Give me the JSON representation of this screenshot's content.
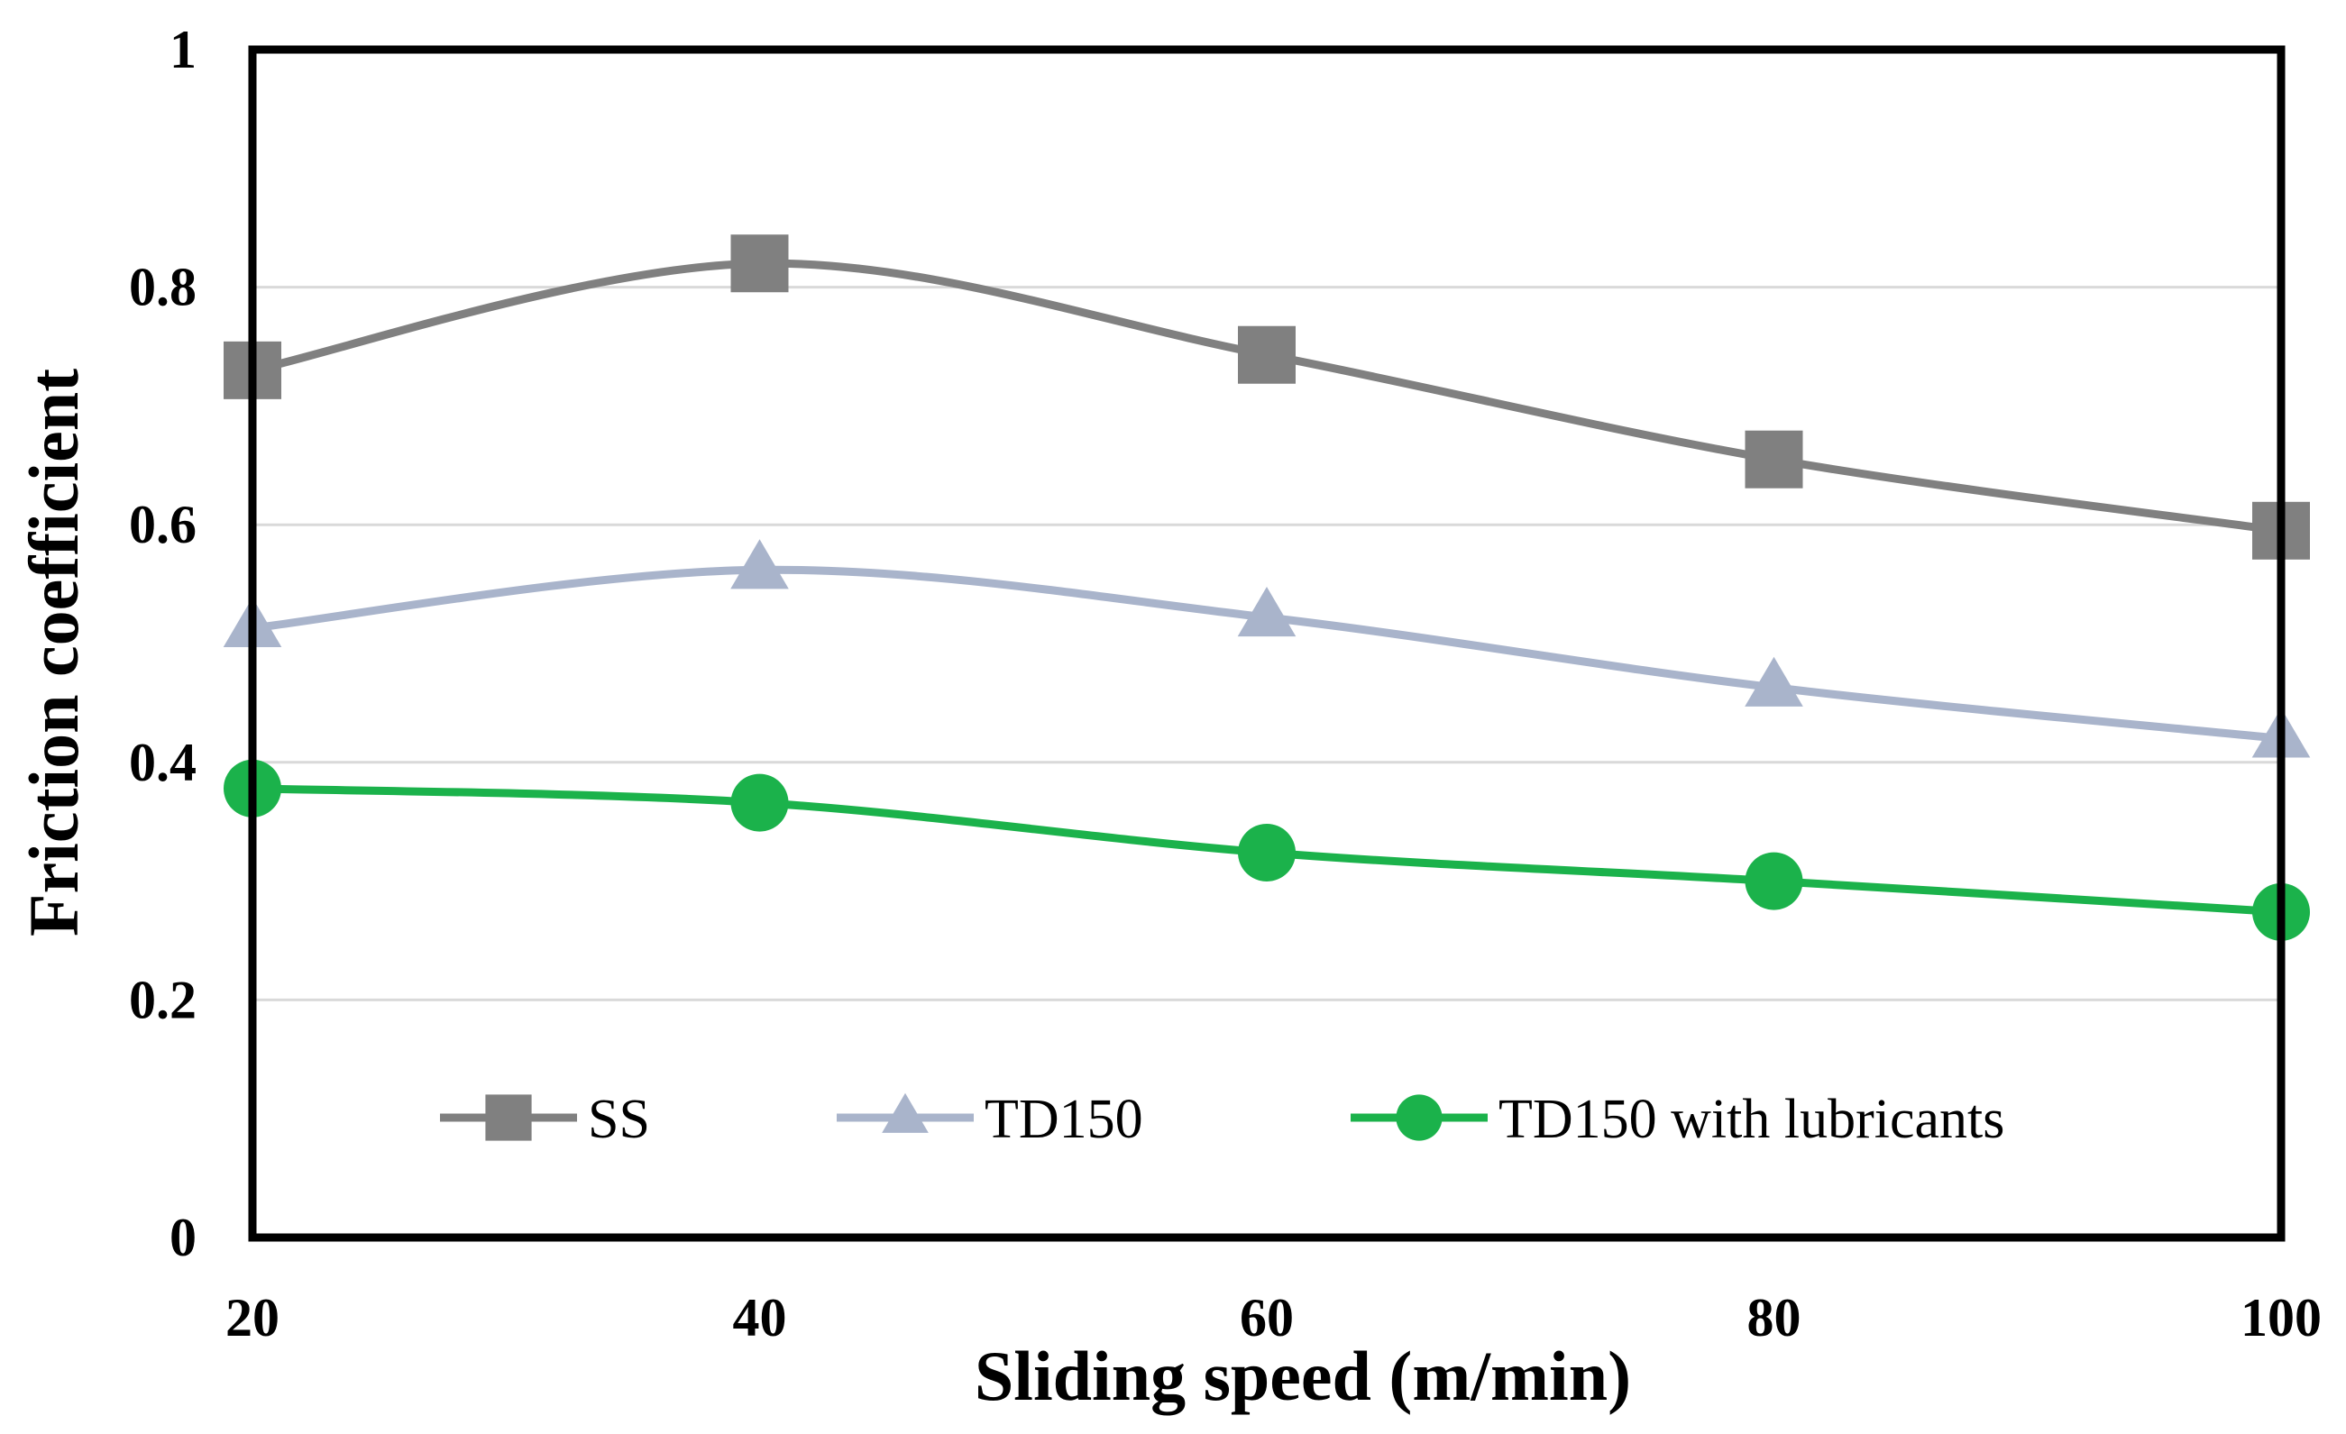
{
  "chart_data": {
    "type": "line",
    "title": "",
    "xlabel": "Sliding speed (m/min)",
    "ylabel": "Friction coefficient",
    "x": [
      20,
      40,
      60,
      80,
      100
    ],
    "xlim": [
      20,
      100
    ],
    "ylim": [
      0,
      1
    ],
    "x_ticks": [
      "20",
      "40",
      "60",
      "80",
      "100"
    ],
    "y_ticks": [
      "0",
      "0.2",
      "0.4",
      "0.6",
      "0.8",
      "1"
    ],
    "y_tick_values": [
      0,
      0.2,
      0.4,
      0.6,
      0.8,
      1
    ],
    "grid": "horizontal",
    "smoothed": true,
    "legend_position": "bottom-inside",
    "series": [
      {
        "name": "SS",
        "marker": "square",
        "color": "#808080",
        "values": [
          0.73,
          0.82,
          0.743,
          0.655,
          0.595
        ]
      },
      {
        "name": "TD150",
        "marker": "triangle",
        "color": "#A9B4CB",
        "values": [
          0.513,
          0.562,
          0.522,
          0.463,
          0.42
        ]
      },
      {
        "name": "TD150 with lubricants",
        "marker": "circle",
        "color": "#1BB24B",
        "values": [
          0.378,
          0.366,
          0.324,
          0.3,
          0.274
        ]
      }
    ]
  }
}
